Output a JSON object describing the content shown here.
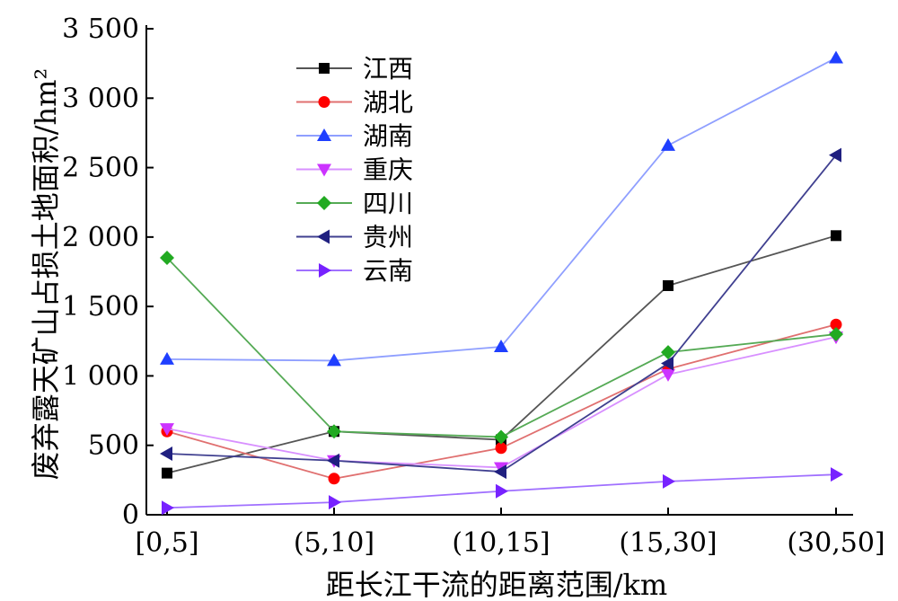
{
  "chart_data": {
    "type": "line",
    "xlabel": "距长江干流的距离范围/km",
    "ylabel": "废弃露天矿山占损土地面积/hm²",
    "categories": [
      "[0,5]",
      "(5,10]",
      "(10,15]",
      "(15,30]",
      "(30,50]"
    ],
    "ylim": [
      0,
      3500
    ],
    "yticks": [
      0,
      500,
      1000,
      1500,
      2000,
      2500,
      3000,
      3500
    ],
    "ytick_labels": [
      "0",
      "500",
      "1 000",
      "1 500",
      "2 000",
      "2 500",
      "3 000",
      "3 500"
    ],
    "legend_position": "top-left",
    "series": [
      {
        "name": "江西",
        "values": [
          300,
          600,
          540,
          1650,
          2010
        ],
        "color": "#000000",
        "line_color": "#555555",
        "marker": "square"
      },
      {
        "name": "湖北",
        "values": [
          600,
          260,
          480,
          1050,
          1370
        ],
        "color": "#ff0000",
        "line_color": "#e07070",
        "marker": "circle"
      },
      {
        "name": "湖南",
        "values": [
          1120,
          1110,
          1210,
          2660,
          3290
        ],
        "color": "#1f3fff",
        "line_color": "#8f9fff",
        "marker": "triangle-up"
      },
      {
        "name": "重庆",
        "values": [
          620,
          390,
          340,
          1010,
          1280
        ],
        "color": "#cc33ff",
        "line_color": "#d890ff",
        "marker": "triangle-down"
      },
      {
        "name": "四川",
        "values": [
          1850,
          600,
          560,
          1170,
          1300
        ],
        "color": "#22aa22",
        "line_color": "#55aa55",
        "marker": "diamond"
      },
      {
        "name": "贵州",
        "values": [
          440,
          390,
          310,
          1090,
          2590
        ],
        "color": "#202080",
        "line_color": "#404090",
        "marker": "triangle-left"
      },
      {
        "name": "云南",
        "values": [
          50,
          90,
          170,
          240,
          290
        ],
        "color": "#7722ff",
        "line_color": "#a070ff",
        "marker": "triangle-right"
      }
    ]
  }
}
